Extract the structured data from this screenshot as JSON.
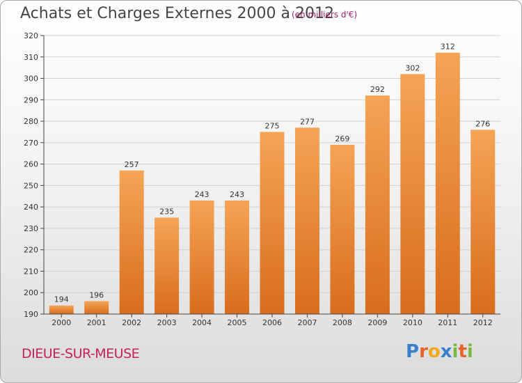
{
  "header": {
    "title": "Achats et Charges Externes 2000 à 2012",
    "subtitle": "(en milliers d'€)"
  },
  "footer": {
    "city": "DIEUE-SUR-MEUSE",
    "logo_letters": [
      "P",
      "r",
      "o",
      "x",
      "i",
      "t",
      "i"
    ],
    "logo_colors": [
      "#3a7fc9",
      "#e8632a",
      "#f2a81e",
      "#3a7fc9",
      "#7ab642",
      "#e8632a",
      "#7ab642"
    ]
  },
  "colors": {
    "bar_top": "#f5a456",
    "bar_bottom": "#d86d1c",
    "grid": "#cfcfcf",
    "axis": "#444444"
  },
  "chart_data": {
    "type": "bar",
    "title": "Achats et Charges Externes 2000 à 2012",
    "xlabel": "",
    "ylabel": "",
    "categories": [
      "2000",
      "2001",
      "2002",
      "2003",
      "2004",
      "2005",
      "2006",
      "2007",
      "2008",
      "2009",
      "2010",
      "2011",
      "2012"
    ],
    "values": [
      194,
      196,
      257,
      235,
      243,
      243,
      275,
      277,
      269,
      292,
      302,
      312,
      276
    ],
    "ylim": [
      190,
      320
    ],
    "yticks": [
      190,
      200,
      210,
      220,
      230,
      240,
      250,
      260,
      270,
      280,
      290,
      300,
      310,
      320
    ],
    "grid": true
  }
}
